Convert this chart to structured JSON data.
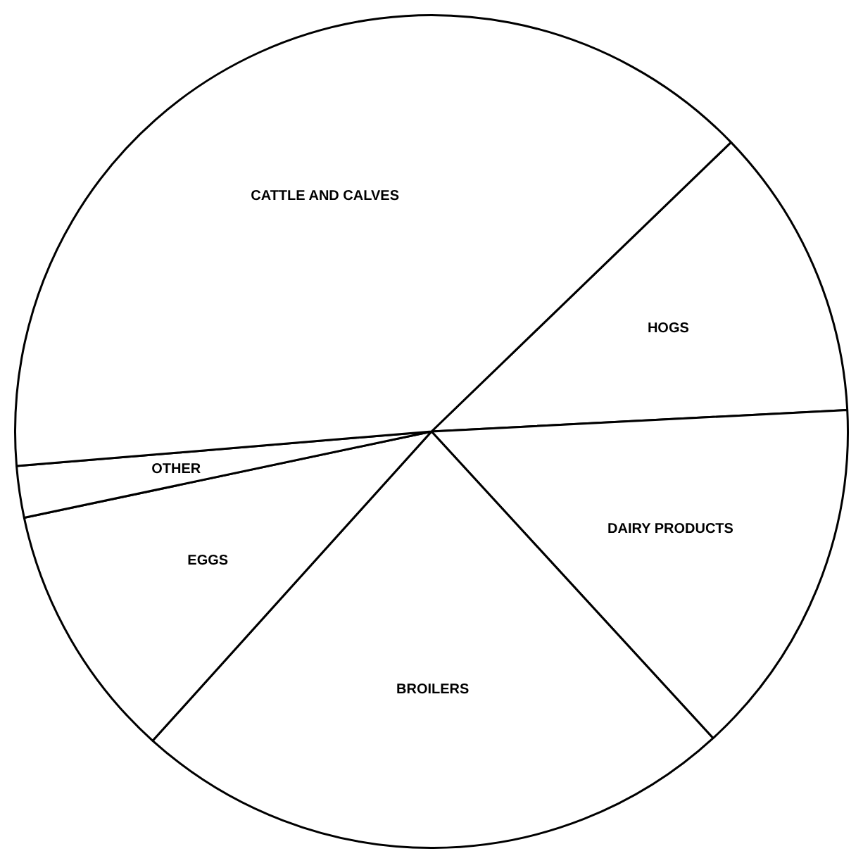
{
  "chart_data": {
    "type": "pie",
    "categories": [
      "HOGS",
      "DAIRY PRODUCTS",
      "BROILERS",
      "EGGS",
      "OTHER",
      "CATTLE AND CALVES"
    ],
    "values": [
      11.4,
      14.0,
      23.5,
      10.0,
      2.0,
      39.1
    ],
    "colors": [
      "#ffffff",
      "#ffffff",
      "#ffffff",
      "#ffffff",
      "#ffffff",
      "#ffffff"
    ],
    "legend": false
  }
}
